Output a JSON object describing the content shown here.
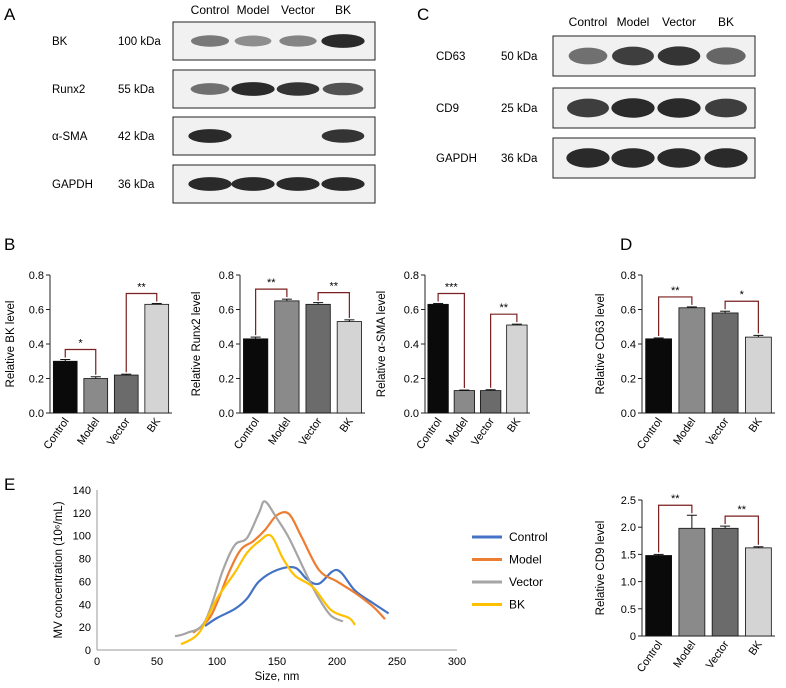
{
  "panels": {
    "A": {
      "letter": "A",
      "lanes": [
        "Control",
        "Model",
        "Vector",
        "BK"
      ],
      "rows": [
        {
          "protein": "BK",
          "kda": "100 kDa",
          "intensity": [
            0.55,
            0.45,
            0.5,
            0.95
          ]
        },
        {
          "protein": "Runx2",
          "kda": "55 kDa",
          "intensity": [
            0.6,
            0.95,
            0.9,
            0.75
          ]
        },
        {
          "protein": "α-SMA",
          "kda": "42 kDa",
          "intensity": [
            0.95,
            0.05,
            0.05,
            0.9
          ]
        },
        {
          "protein": "GAPDH",
          "kda": "36 kDa",
          "intensity": [
            0.95,
            0.95,
            0.95,
            0.95
          ]
        }
      ]
    },
    "C": {
      "letter": "C",
      "lanes": [
        "Control",
        "Model",
        "Vector",
        "BK"
      ],
      "rows": [
        {
          "protein": "CD63",
          "kda": "50 kDa",
          "intensity": [
            0.6,
            0.85,
            0.9,
            0.65
          ]
        },
        {
          "protein": "CD9",
          "kda": "25 kDa",
          "intensity": [
            0.85,
            0.95,
            0.95,
            0.85
          ]
        },
        {
          "protein": "GAPDH",
          "kda": "36 kDa",
          "intensity": [
            0.95,
            0.95,
            0.95,
            0.95
          ]
        }
      ]
    },
    "B": {
      "letter": "B"
    },
    "D": {
      "letter": "D"
    },
    "E": {
      "letter": "E"
    }
  },
  "chart_data": [
    {
      "id": "bk",
      "type": "bar",
      "ylabel": "Relative BK level",
      "categories": [
        "Control",
        "Model",
        "Vector",
        "BK"
      ],
      "values": [
        0.3,
        0.2,
        0.22,
        0.63
      ],
      "errors": [
        0.01,
        0.01,
        0.005,
        0.005
      ],
      "ylim": [
        0,
        0.8
      ],
      "yticks": [
        "0.0",
        "0.2",
        "0.4",
        "0.6",
        "0.8"
      ],
      "colors": [
        "#0a0a0a",
        "#8a8a8a",
        "#6b6b6b",
        "#d4d4d4"
      ],
      "sig": [
        {
          "a": 0,
          "b": 1,
          "label": "*"
        },
        {
          "a": 2,
          "b": 3,
          "label": "**"
        }
      ]
    },
    {
      "id": "runx2",
      "type": "bar",
      "ylabel": "Relative Runx2 level",
      "categories": [
        "Control",
        "Model",
        "Vector",
        "BK"
      ],
      "values": [
        0.43,
        0.65,
        0.63,
        0.53
      ],
      "errors": [
        0.01,
        0.01,
        0.01,
        0.01
      ],
      "ylim": [
        0,
        0.8
      ],
      "yticks": [
        "0.0",
        "0.2",
        "0.4",
        "0.6",
        "0.8"
      ],
      "colors": [
        "#0a0a0a",
        "#8a8a8a",
        "#6b6b6b",
        "#d4d4d4"
      ],
      "sig": [
        {
          "a": 0,
          "b": 1,
          "label": "**"
        },
        {
          "a": 2,
          "b": 3,
          "label": "**"
        }
      ]
    },
    {
      "id": "asma",
      "type": "bar",
      "ylabel": "Relative α-SMA level",
      "categories": [
        "Control",
        "Model",
        "Vector",
        "BK"
      ],
      "values": [
        0.63,
        0.13,
        0.13,
        0.51
      ],
      "errors": [
        0.005,
        0.003,
        0.005,
        0.005
      ],
      "ylim": [
        0,
        0.8
      ],
      "yticks": [
        "0.0",
        "0.2",
        "0.4",
        "0.6",
        "0.8"
      ],
      "colors": [
        "#0a0a0a",
        "#8a8a8a",
        "#6b6b6b",
        "#d4d4d4"
      ],
      "sig": [
        {
          "a": 0,
          "b": 1,
          "label": "***"
        },
        {
          "a": 2,
          "b": 3,
          "label": "**"
        }
      ]
    },
    {
      "id": "cd63",
      "type": "bar",
      "ylabel": "Relative CD63 level",
      "categories": [
        "Control",
        "Model",
        "Vector",
        "BK"
      ],
      "values": [
        0.43,
        0.61,
        0.58,
        0.44
      ],
      "errors": [
        0.005,
        0.005,
        0.01,
        0.01
      ],
      "ylim": [
        0,
        0.8
      ],
      "yticks": [
        "0.0",
        "0.2",
        "0.4",
        "0.6",
        "0.8"
      ],
      "colors": [
        "#0a0a0a",
        "#8a8a8a",
        "#6b6b6b",
        "#d4d4d4"
      ],
      "sig": [
        {
          "a": 0,
          "b": 1,
          "label": "**"
        },
        {
          "a": 2,
          "b": 3,
          "label": "*"
        }
      ]
    },
    {
      "id": "cd9",
      "type": "bar",
      "ylabel": "Relative CD9 level",
      "categories": [
        "Control",
        "Model",
        "Vector",
        "BK"
      ],
      "values": [
        1.48,
        1.98,
        1.98,
        1.62
      ],
      "errors": [
        0.02,
        0.24,
        0.04,
        0.02
      ],
      "ylim": [
        0,
        2.5
      ],
      "yticks": [
        "0",
        "0.5",
        "1.0",
        "1.5",
        "2.0",
        "2.5"
      ],
      "colors": [
        "#0a0a0a",
        "#8a8a8a",
        "#6b6b6b",
        "#d4d4d4"
      ],
      "sig": [
        {
          "a": 0,
          "b": 1,
          "label": "**"
        },
        {
          "a": 2,
          "b": 3,
          "label": "**"
        }
      ]
    },
    {
      "id": "nta",
      "type": "line",
      "xlabel": "Size, nm",
      "ylabel": "MV concentration (10⁶/mL)",
      "xlim": [
        0,
        300
      ],
      "ylim": [
        0,
        140
      ],
      "xticks": [
        "0",
        "50",
        "100",
        "150",
        "200",
        "250",
        "300"
      ],
      "yticks": [
        "0",
        "20",
        "40",
        "60",
        "80",
        "100",
        "120",
        "140"
      ],
      "series": [
        {
          "name": "Control",
          "color": "#4472c4",
          "x": [
            90,
            100,
            115,
            125,
            135,
            150,
            165,
            175,
            185,
            200,
            215,
            230,
            243
          ],
          "y": [
            21,
            28,
            36,
            45,
            60,
            70,
            72,
            62,
            58,
            70,
            52,
            41,
            32
          ]
        },
        {
          "name": "Model",
          "color": "#ed7d31",
          "x": [
            80,
            95,
            110,
            120,
            130,
            140,
            150,
            160,
            170,
            185,
            200,
            215,
            230,
            240
          ],
          "y": [
            15,
            30,
            68,
            88,
            95,
            105,
            118,
            119,
            100,
            70,
            60,
            50,
            38,
            27
          ]
        },
        {
          "name": "Vector",
          "color": "#a5a5a5",
          "x": [
            65,
            75,
            90,
            105,
            115,
            125,
            135,
            140,
            150,
            160,
            175,
            185,
            195,
            205
          ],
          "y": [
            12,
            15,
            25,
            70,
            92,
            98,
            120,
            130,
            115,
            98,
            65,
            45,
            30,
            25
          ]
        },
        {
          "name": "BK",
          "color": "#ffc000",
          "x": [
            70,
            85,
            100,
            115,
            125,
            135,
            145,
            155,
            165,
            180,
            195,
            210,
            215
          ],
          "y": [
            5,
            15,
            45,
            68,
            85,
            95,
            100,
            80,
            65,
            55,
            35,
            28,
            22
          ]
        }
      ]
    }
  ]
}
